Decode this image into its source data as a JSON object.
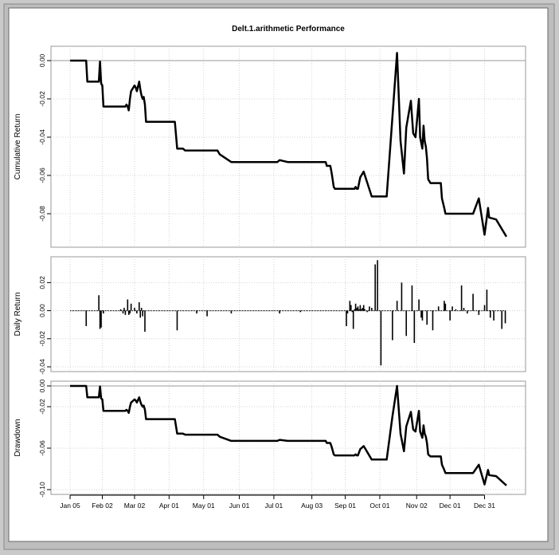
{
  "chart_data": [
    {
      "panel": "cumulative",
      "type": "line",
      "title": "Delt.1.arithmetic Performance",
      "ylabel": "Cumulative Return",
      "ylim": [
        -0.095,
        0.005
      ],
      "yticks": [
        "0.00",
        "-0.02",
        "-0.04",
        "-0.06",
        "-0.08"
      ],
      "ytick_values": [
        0,
        -0.02,
        -0.04,
        -0.06,
        -0.08
      ],
      "grid": true,
      "x": [
        0,
        14,
        15,
        25,
        26,
        27,
        28,
        29,
        30,
        37,
        38,
        48,
        49,
        50,
        51,
        52,
        53,
        56,
        57,
        58,
        60,
        61,
        62,
        63,
        64,
        65,
        66,
        70,
        71,
        80,
        91,
        93,
        98,
        100,
        110,
        128,
        130,
        140,
        160,
        180,
        182,
        189,
        190,
        200,
        202,
        222,
        223,
        226,
        227,
        228,
        229,
        230,
        235,
        236,
        237,
        238,
        239,
        240,
        241,
        242,
        243,
        244,
        245,
        246,
        247,
        248,
        249,
        250,
        252,
        255,
        262,
        263,
        268,
        270,
        275,
        280,
        284,
        287,
        290,
        292,
        296,
        298,
        300,
        303,
        304,
        306,
        307,
        308,
        309,
        310,
        311,
        313,
        314,
        315,
        317,
        318,
        320,
        321,
        322,
        323,
        325,
        326,
        330,
        340,
        350,
        355,
        360,
        363,
        364,
        370,
        379
      ],
      "y": [
        0,
        0,
        -0.011,
        -0.011,
        -0.0005,
        -0.012,
        -0.013,
        -0.024,
        -0.024,
        -0.024,
        -0.024,
        -0.024,
        -0.023,
        -0.024,
        -0.026,
        -0.02,
        -0.016,
        -0.013,
        -0.014,
        -0.016,
        -0.011,
        -0.015,
        -0.018,
        -0.02,
        -0.019,
        -0.023,
        -0.032,
        -0.032,
        -0.032,
        -0.032,
        -0.032,
        -0.046,
        -0.046,
        -0.047,
        -0.047,
        -0.047,
        -0.049,
        -0.053,
        -0.053,
        -0.053,
        -0.052,
        -0.053,
        -0.053,
        -0.053,
        -0.053,
        -0.053,
        -0.055,
        -0.055,
        -0.058,
        -0.062,
        -0.066,
        -0.067,
        -0.067,
        -0.067,
        -0.067,
        -0.067,
        -0.067,
        -0.067,
        -0.067,
        -0.067,
        -0.067,
        -0.067,
        -0.067,
        -0.067,
        -0.067,
        -0.066,
        -0.067,
        -0.067,
        -0.061,
        -0.058,
        -0.071,
        -0.071,
        -0.071,
        -0.071,
        -0.071,
        -0.029,
        0.004,
        -0.042,
        -0.059,
        -0.035,
        -0.021,
        -0.038,
        -0.04,
        -0.02,
        -0.04,
        -0.046,
        -0.034,
        -0.042,
        -0.045,
        -0.051,
        -0.062,
        -0.064,
        -0.064,
        -0.064,
        -0.064,
        -0.064,
        -0.064,
        -0.064,
        -0.064,
        -0.072,
        -0.077,
        -0.08,
        -0.08,
        -0.08,
        -0.08,
        -0.072,
        -0.091,
        -0.077,
        -0.082,
        -0.083,
        -0.092
      ]
    },
    {
      "panel": "daily",
      "type": "bar",
      "ylabel": "Daily Return",
      "ylim": [
        -0.04,
        0.035
      ],
      "yticks": [
        "0.02",
        "0.00",
        "-0.02",
        "-0.04"
      ],
      "ytick_values": [
        0.02,
        0,
        -0.02,
        -0.04
      ],
      "grid": true,
      "x": [
        14,
        25,
        26,
        27,
        29,
        44,
        46,
        47,
        48,
        50,
        51,
        52,
        53,
        56,
        58,
        60,
        61,
        62,
        63,
        65,
        93,
        110,
        119,
        140,
        182,
        200,
        240,
        241,
        243,
        244,
        245,
        246,
        247,
        248,
        249,
        250,
        251,
        252,
        253,
        254,
        255,
        256,
        258,
        260,
        262,
        265,
        267,
        270,
        280,
        284,
        288,
        292,
        297,
        299,
        303,
        305,
        306,
        310,
        315,
        320,
        325,
        326,
        330,
        332,
        335,
        340,
        342,
        345,
        350,
        355,
        360,
        362,
        365,
        368,
        375,
        378
      ],
      "values": [
        -0.011,
        0.011,
        -0.013,
        -0.012,
        -0.002,
        0.001,
        -0.002,
        0.002,
        -0.003,
        0.008,
        -0.003,
        -0.002,
        0.005,
        0.002,
        -0.002,
        0.006,
        -0.005,
        0.002,
        -0.004,
        -0.015,
        -0.014,
        -0.002,
        -0.004,
        -0.002,
        -0.002,
        -0.001,
        -0.011,
        -0.002,
        0.007,
        0.004,
        -0.001,
        -0.013,
        0.001,
        0.005,
        0.002,
        0.003,
        0.001,
        0.004,
        0.001,
        0.002,
        0.004,
        0.001,
        -0.001,
        0.003,
        0.002,
        0.033,
        0.036,
        -0.039,
        -0.021,
        0.007,
        0.02,
        -0.018,
        0.018,
        -0.023,
        0.008,
        -0.005,
        -0.007,
        -0.01,
        -0.014,
        0.003,
        0.007,
        0.005,
        -0.007,
        0.003,
        0.001,
        0.018,
        0.002,
        -0.002,
        0.012,
        -0.003,
        0.004,
        0.015,
        -0.005,
        -0.007,
        -0.013,
        -0.009
      ]
    },
    {
      "panel": "drawdown",
      "type": "line",
      "ylabel": "Drawdown",
      "ylim": [
        -0.1,
        0.0
      ],
      "yticks": [
        "0.00",
        "-0.02",
        "-0.06",
        "-0.10"
      ],
      "ytick_values": [
        0,
        -0.02,
        -0.06,
        -0.1
      ],
      "grid": true
    }
  ],
  "x_axis": {
    "range": [
      0,
      379
    ],
    "ticks": [
      {
        "label": "Jan 05",
        "x": 0
      },
      {
        "label": "Feb 02",
        "x": 28
      },
      {
        "label": "Mar 02",
        "x": 56
      },
      {
        "label": "Apr 01",
        "x": 86
      },
      {
        "label": "May 01",
        "x": 116
      },
      {
        "label": "Jun 01",
        "x": 147
      },
      {
        "label": "Jul 01",
        "x": 177
      },
      {
        "label": "Aug 03",
        "x": 210
      },
      {
        "label": "Sep 01",
        "x": 239
      },
      {
        "label": "Oct 01",
        "x": 269
      },
      {
        "label": "Nov 02",
        "x": 301
      },
      {
        "label": "Dec 01",
        "x": 330
      },
      {
        "label": "Dec 31",
        "x": 360
      }
    ]
  }
}
